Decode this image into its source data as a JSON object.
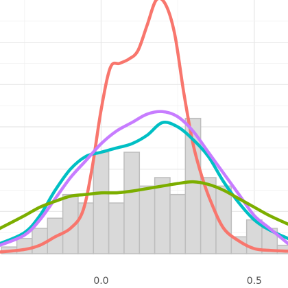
{
  "chart_data": {
    "type": "area",
    "title": "",
    "xlabel": "",
    "ylabel": "",
    "xlim": [
      -0.33,
      0.61
    ],
    "ylim": [
      0,
      3.0
    ],
    "grid": true,
    "legend": "none",
    "x_ticks": [
      {
        "value": 0.0,
        "label": "0.0"
      },
      {
        "value": 0.5,
        "label": "0.5"
      }
    ],
    "histogram": {
      "bin_width": 0.05,
      "bin_start": -0.325,
      "counts": [
        0.08,
        0.18,
        0.3,
        0.42,
        0.7,
        0.6,
        1.2,
        0.6,
        1.2,
        0.8,
        0.9,
        0.7,
        1.6,
        0.9,
        0.8,
        0.2,
        0.4,
        0.3,
        0.1,
        0.1
      ],
      "fill": "#d9d9d9",
      "stroke": "#bdbdbd"
    },
    "series": [
      {
        "color": "#f8766d",
        "x": [
          -0.33,
          -0.25,
          -0.2,
          -0.15,
          -0.1,
          -0.06,
          -0.03,
          0.0,
          0.03,
          0.06,
          0.09,
          0.12,
          0.15,
          0.18,
          0.21,
          0.24,
          0.27,
          0.3,
          0.33,
          0.36,
          0.4,
          0.45,
          0.5,
          0.55,
          0.61
        ],
        "y": [
          0.02,
          0.05,
          0.1,
          0.2,
          0.3,
          0.5,
          1.0,
          1.7,
          2.2,
          2.25,
          2.3,
          2.4,
          2.7,
          3.0,
          2.95,
          2.6,
          1.9,
          1.3,
          0.9,
          0.6,
          0.3,
          0.15,
          0.06,
          0.04,
          0.03
        ]
      },
      {
        "color": "#00bfc4",
        "x": [
          -0.33,
          -0.25,
          -0.2,
          -0.15,
          -0.1,
          -0.05,
          0.0,
          0.05,
          0.1,
          0.15,
          0.2,
          0.25,
          0.3,
          0.35,
          0.4,
          0.45,
          0.5,
          0.55,
          0.61
        ],
        "y": [
          0.12,
          0.25,
          0.45,
          0.75,
          1.0,
          1.15,
          1.2,
          1.25,
          1.3,
          1.4,
          1.55,
          1.5,
          1.35,
          1.15,
          0.85,
          0.6,
          0.4,
          0.28,
          0.18
        ]
      },
      {
        "color": "#c77cff",
        "x": [
          -0.33,
          -0.25,
          -0.2,
          -0.15,
          -0.1,
          -0.05,
          0.0,
          0.05,
          0.1,
          0.15,
          0.2,
          0.25,
          0.3,
          0.35,
          0.4,
          0.45,
          0.5,
          0.55,
          0.61
        ],
        "y": [
          0.1,
          0.22,
          0.4,
          0.65,
          0.9,
          1.1,
          1.3,
          1.45,
          1.55,
          1.65,
          1.68,
          1.62,
          1.45,
          1.2,
          0.95,
          0.7,
          0.45,
          0.3,
          0.12
        ]
      },
      {
        "color": "#7cae00",
        "x": [
          -0.33,
          -0.25,
          -0.2,
          -0.15,
          -0.1,
          -0.05,
          0.0,
          0.05,
          0.1,
          0.15,
          0.2,
          0.25,
          0.3,
          0.35,
          0.4,
          0.45,
          0.5,
          0.55,
          0.61
        ],
        "y": [
          0.3,
          0.45,
          0.55,
          0.62,
          0.68,
          0.7,
          0.72,
          0.72,
          0.74,
          0.77,
          0.8,
          0.83,
          0.85,
          0.82,
          0.75,
          0.65,
          0.55,
          0.45,
          0.35
        ]
      }
    ]
  }
}
